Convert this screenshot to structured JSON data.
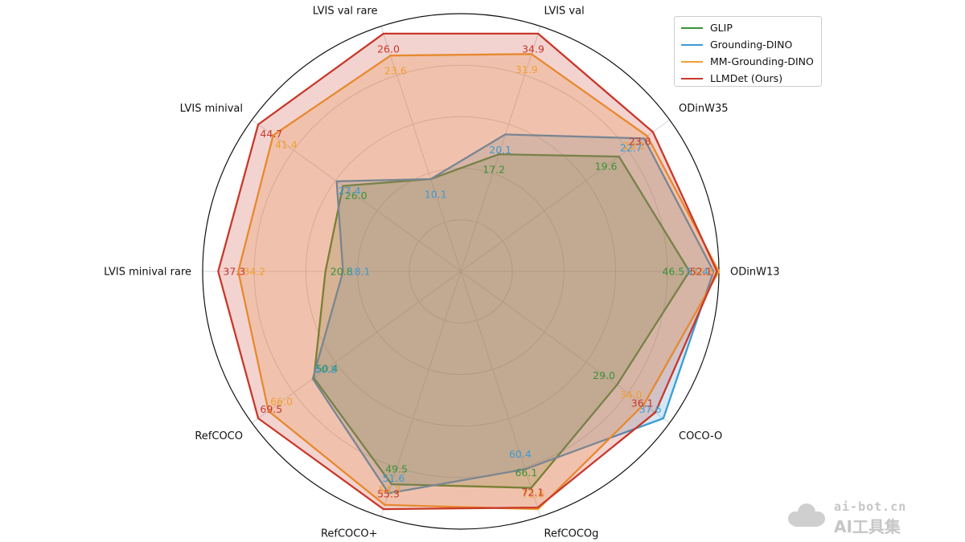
{
  "chart_data": {
    "type": "radar",
    "title": "",
    "axes": [
      "ODinW13",
      "ODinW35",
      "LVIS val",
      "LVIS val rare",
      "LVIS minival",
      "LVIS minival rare",
      "RefCOCO",
      "RefCOCO+",
      "RefCOCOg",
      "COCO-O"
    ],
    "series": [
      {
        "name": "GLIP",
        "color": "#3a923a",
        "values": [
          46.5,
          19.6,
          17.2,
          10.1,
          26.0,
          20.8,
          50.4,
          49.5,
          66.1,
          29.0
        ],
        "labels": [
          "46.5",
          "19.6",
          "17.2",
          "",
          "26.0",
          "20.8",
          "50.4",
          "49.5",
          "66.1",
          "29.0"
        ]
      },
      {
        "name": "Grounding-DINO",
        "color": "#3d9bd3",
        "values": [
          51.4,
          22.7,
          20.1,
          10.1,
          27.4,
          18.1,
          50.8,
          51.6,
          60.4,
          37.6
        ],
        "labels": [
          "51.4",
          "22.7",
          "20.1",
          "10.1",
          "27.4",
          "18.1",
          "50.8",
          "51.6",
          "60.4",
          "37.6"
        ]
      },
      {
        "name": "MM-Grounding-DINO",
        "color": "#f0a030",
        "values": [
          52.5,
          23.1,
          31.9,
          23.6,
          41.4,
          34.2,
          66.0,
          54.3,
          72.6,
          34.0
        ],
        "labels": [
          "52.5",
          "23.1",
          "31.9",
          "23.6",
          "41.4",
          "34.2",
          "66.0",
          "54.3",
          "72.6",
          "34.0"
        ]
      },
      {
        "name": "LLMDet (Ours)",
        "color": "#c8382a",
        "values": [
          52.1,
          23.8,
          34.9,
          26.0,
          44.7,
          37.3,
          69.5,
          55.3,
          72.1,
          36.1
        ],
        "labels": [
          "52.1",
          "23.8",
          "34.9",
          "26.0",
          "44.7",
          "37.3",
          "69.5",
          "55.3",
          "72.1",
          "36.1"
        ]
      }
    ],
    "legend_position": "top-right",
    "grid": true
  },
  "watermark": {
    "url": "ai-bot.cn",
    "name": "AI工具集"
  }
}
